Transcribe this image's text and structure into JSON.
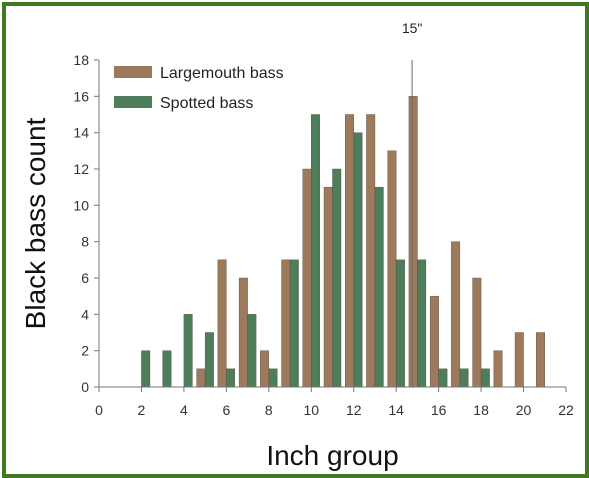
{
  "chart_data": {
    "type": "bar",
    "xlabel": "Inch group",
    "ylabel": "Black bass count",
    "xlim": [
      0,
      22
    ],
    "ylim": [
      0,
      18
    ],
    "x_ticks": [
      0,
      2,
      4,
      6,
      8,
      10,
      12,
      14,
      16,
      18,
      20,
      22
    ],
    "y_ticks": [
      0,
      2,
      4,
      6,
      8,
      10,
      12,
      14,
      16,
      18
    ],
    "grid": false,
    "legend_position": "top-left",
    "categories": [
      2,
      3,
      4,
      5,
      6,
      7,
      8,
      9,
      10,
      11,
      12,
      13,
      14,
      15,
      16,
      17,
      18,
      19,
      20,
      21
    ],
    "series": [
      {
        "name": "Largemouth bass",
        "color": "#9c7a5b",
        "values": [
          0,
          0,
          0,
          1,
          7,
          6,
          2,
          7,
          12,
          11,
          15,
          15,
          13,
          16,
          5,
          8,
          6,
          2,
          3,
          3
        ]
      },
      {
        "name": "Spotted bass",
        "color": "#4e7d5b",
        "values": [
          2,
          2,
          4,
          3,
          1,
          4,
          1,
          7,
          15,
          12,
          14,
          11,
          7,
          7,
          1,
          1,
          1,
          0,
          0,
          0
        ]
      }
    ],
    "annotations": [
      {
        "text": "15\"",
        "x": 15
      }
    ]
  }
}
